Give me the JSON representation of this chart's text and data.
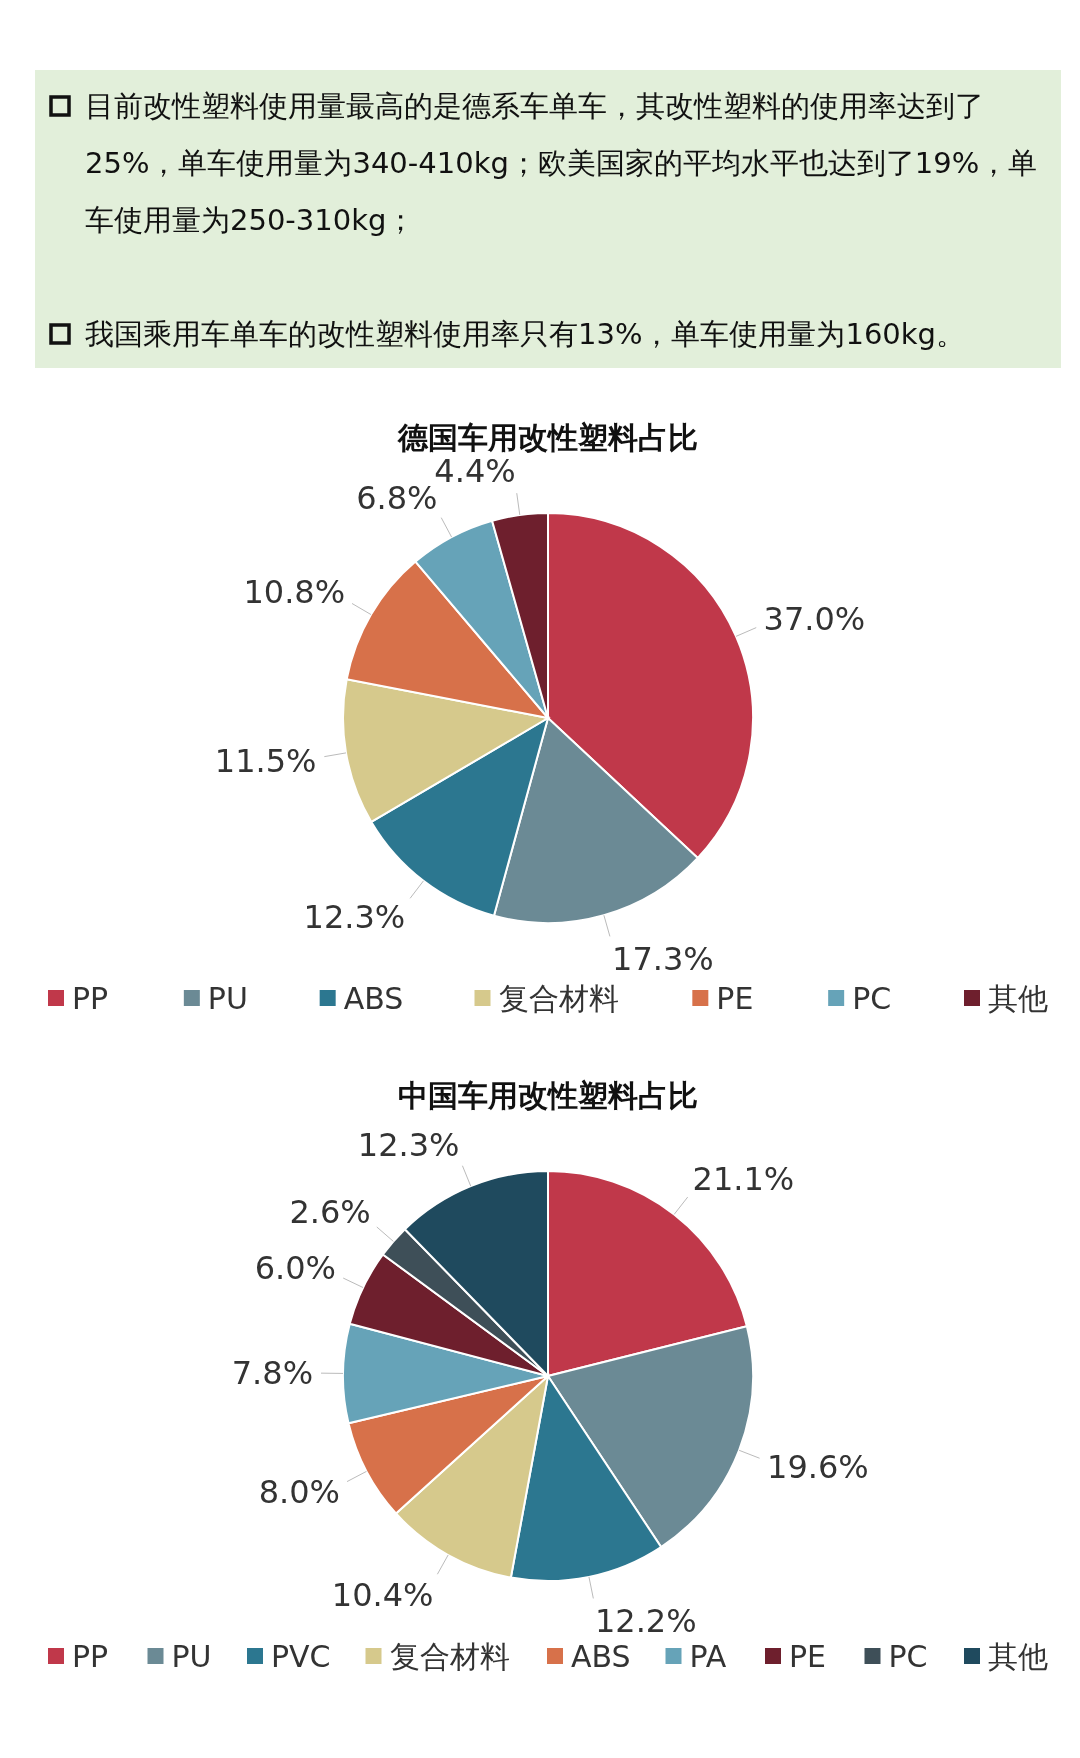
{
  "chart_data": [
    {
      "type": "other",
      "annotations": [
        "目前改性塑料使用量最高的是德系车单车，其改性塑料的使用率达到了25%，单车使用量为340-410kg；欧美国家的平均水平也达到了19%，单车使用量为250-310kg；",
        "我国乘用车单车的改性塑料使用率只有13%，单车使用量为160kg。"
      ]
    },
    {
      "type": "pie",
      "title": "德国车用改性塑料占比",
      "categories": [
        "PP",
        "PU",
        "ABS",
        "复合材料",
        "PE",
        "PC",
        "其他"
      ],
      "values": [
        37.0,
        17.3,
        12.3,
        11.5,
        10.8,
        6.8,
        4.4
      ],
      "value_labels": [
        "37.0%",
        "17.3%",
        "12.3%",
        "11.5%",
        "10.8%",
        "6.8%",
        "4.4%"
      ],
      "colors": [
        "#c0384a",
        "#6b8a95",
        "#2c7790",
        "#d6c98c",
        "#d7714a",
        "#66a3b8",
        "#6e1f2d"
      ],
      "legend": "bottom"
    },
    {
      "type": "pie",
      "title": "中国车用改性塑料占比",
      "categories": [
        "PP",
        "PU",
        "PVC",
        "复合材料",
        "ABS",
        "PA",
        "PE",
        "PC",
        "其他"
      ],
      "values": [
        21.1,
        19.6,
        12.2,
        10.4,
        8.0,
        7.8,
        6.0,
        2.6,
        12.3
      ],
      "value_labels": [
        "21.1%",
        "19.6%",
        "12.2%",
        "10.4%",
        "8.0%",
        "7.8%",
        "6.0%",
        "2.6%",
        "12.3%"
      ],
      "colors": [
        "#c0384a",
        "#6b8a95",
        "#2c7790",
        "#d6c98c",
        "#d7714a",
        "#66a3b8",
        "#6e1f2d",
        "#3e4f58",
        "#1f4a5e"
      ],
      "legend": "bottom"
    }
  ]
}
